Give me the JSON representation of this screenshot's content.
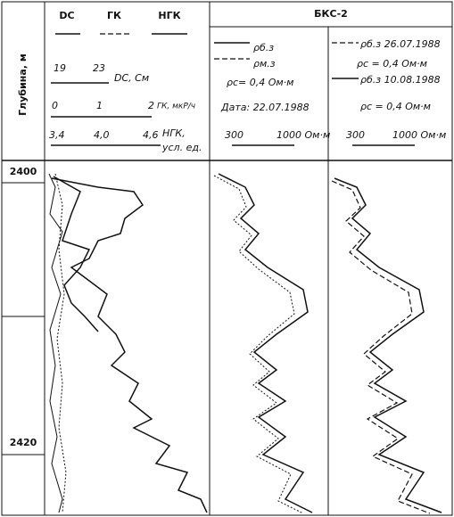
{
  "header": {
    "depth_label": "Глубина, м",
    "col1": {
      "legend": [
        "DC",
        "ГК",
        "НГК"
      ],
      "dc_scale": [
        "19",
        "23",
        "DC, См"
      ],
      "gk_scale": [
        "0",
        "1",
        "2",
        "ГК, мкР/ч"
      ],
      "ngk_scale": [
        "3,4",
        "4,0",
        "4,6",
        "НГК,",
        "усл. ед."
      ]
    },
    "col2": {
      "title": "БКС-2",
      "legend": [
        "ρб.з",
        "ρм.з"
      ],
      "rho_c": "ρс= 0,4 Ом·м",
      "date": "Дата: 22.07.1988",
      "scale": [
        "300",
        "1000 Ом·м"
      ]
    },
    "col3": {
      "legend": [
        "ρб.з 26.07.1988",
        "ρс = 0,4 Ом·м",
        "ρб.з 10.08.1988"
      ],
      "rho_c": "ρс = 0,4 Ом·м",
      "scale": [
        "300",
        "1000 Ом·м"
      ]
    }
  },
  "depths": [
    "2400",
    "2420"
  ]
}
